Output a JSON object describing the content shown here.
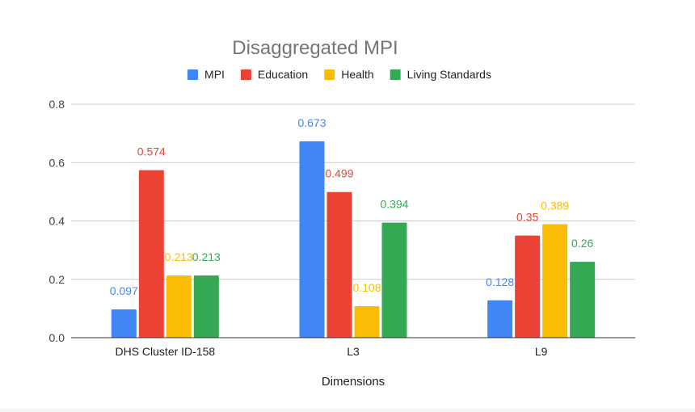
{
  "chart_data": {
    "type": "bar",
    "title": "Disaggregated MPI",
    "xlabel": "Dimensions",
    "ylabel": "",
    "categories": [
      "DHS Cluster ID-158",
      "L3",
      "L9"
    ],
    "series": [
      {
        "name": "MPI",
        "color": "#4285f4",
        "values": [
          0.097,
          0.673,
          0.128
        ],
        "labels": [
          "0.097",
          "0.673",
          "0.128"
        ]
      },
      {
        "name": "Education",
        "color": "#ea4335",
        "values": [
          0.574,
          0.499,
          0.35
        ],
        "labels": [
          "0.574",
          "0.499",
          "0.35"
        ]
      },
      {
        "name": "Health",
        "color": "#fbbc04",
        "values": [
          0.213,
          0.108,
          0.389
        ],
        "labels": [
          "0.213",
          "0.108",
          "0.389"
        ]
      },
      {
        "name": "Living Standards",
        "color": "#34a853",
        "values": [
          0.213,
          0.394,
          0.26
        ],
        "labels": [
          "0.213",
          "0.394",
          "0.26"
        ]
      }
    ],
    "ylim": [
      0,
      0.8
    ],
    "yticks": [
      "0.0",
      "0.2",
      "0.4",
      "0.6",
      "0.8"
    ],
    "grid": true,
    "legend_position": "top"
  }
}
